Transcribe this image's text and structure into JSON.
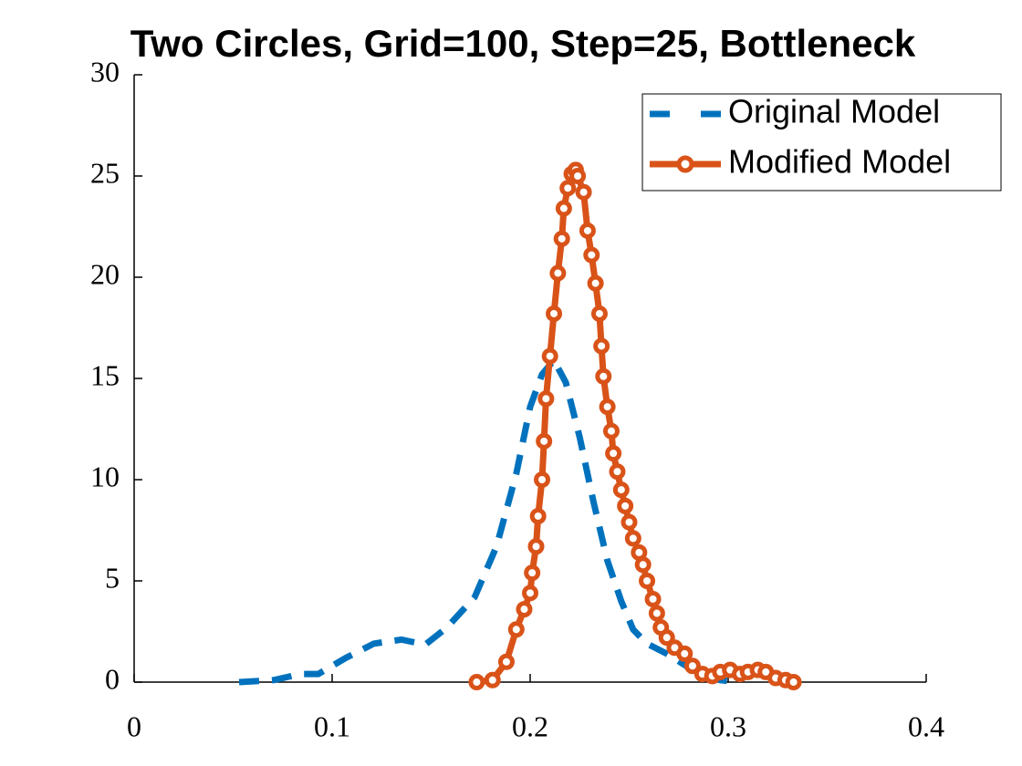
{
  "chart_data": {
    "type": "line",
    "title": "Two Circles, Grid=100, Step=25, Bottleneck",
    "xlim": [
      0,
      0.4
    ],
    "xticks": [
      0,
      0.1,
      0.2,
      0.3,
      0.4
    ],
    "ylim": [
      0,
      30
    ],
    "yticks": [
      0,
      5,
      10,
      15,
      20,
      25,
      30
    ],
    "legend": "northeast",
    "series": [
      {
        "name": "Original Model",
        "color": "#0072bd",
        "linestyle": "dashed",
        "x": [
          0.053,
          0.0705,
          0.084,
          0.093,
          0.107,
          0.121,
          0.135,
          0.147,
          0.158,
          0.172,
          0.183,
          0.193,
          0.2,
          0.206,
          0.212,
          0.218,
          0.225,
          0.232,
          0.239,
          0.246,
          0.252,
          0.259,
          0.269,
          0.282,
          0.296,
          0.305
        ],
        "values": [
          0,
          0.1,
          0.4,
          0.4,
          1.2,
          1.9,
          2.1,
          1.85,
          2.7,
          4.2,
          6.7,
          10.3,
          13.6,
          15.2,
          15.9,
          14.8,
          12.1,
          8.9,
          6.0,
          4.0,
          2.6,
          1.9,
          1.4,
          0.6,
          0.1,
          0
        ]
      },
      {
        "name": "Modified Model",
        "color": "#d95319",
        "linestyle": "solid",
        "marker": "o",
        "x": [
          0.173,
          0.181,
          0.188,
          0.193,
          0.197,
          0.2,
          0.201,
          0.203,
          0.204,
          0.206,
          0.207,
          0.208,
          0.21,
          0.212,
          0.214,
          0.216,
          0.217,
          0.219,
          0.221,
          0.223,
          0.224,
          0.227,
          0.229,
          0.231,
          0.233,
          0.235,
          0.236,
          0.237,
          0.239,
          0.241,
          0.242,
          0.244,
          0.246,
          0.248,
          0.25,
          0.252,
          0.255,
          0.257,
          0.259,
          0.262,
          0.264,
          0.266,
          0.269,
          0.273,
          0.278,
          0.282,
          0.287,
          0.292,
          0.296,
          0.301,
          0.306,
          0.31,
          0.315,
          0.319,
          0.324,
          0.329,
          0.333
        ],
        "values": [
          0,
          0.1,
          1.0,
          2.6,
          3.6,
          4.4,
          5.4,
          6.7,
          8.2,
          10.0,
          11.9,
          14.0,
          16.1,
          18.2,
          20.2,
          21.9,
          23.4,
          24.4,
          25.1,
          25.3,
          25.0,
          24.2,
          22.3,
          21.1,
          19.7,
          18.2,
          16.6,
          15.1,
          13.6,
          12.4,
          11.3,
          10.4,
          9.5,
          8.7,
          7.9,
          7.1,
          6.4,
          5.8,
          5.0,
          4.1,
          3.4,
          2.7,
          2.2,
          1.7,
          1.4,
          0.8,
          0.4,
          0.3,
          0.5,
          0.6,
          0.4,
          0.5,
          0.6,
          0.5,
          0.2,
          0.1,
          0
        ]
      }
    ]
  }
}
